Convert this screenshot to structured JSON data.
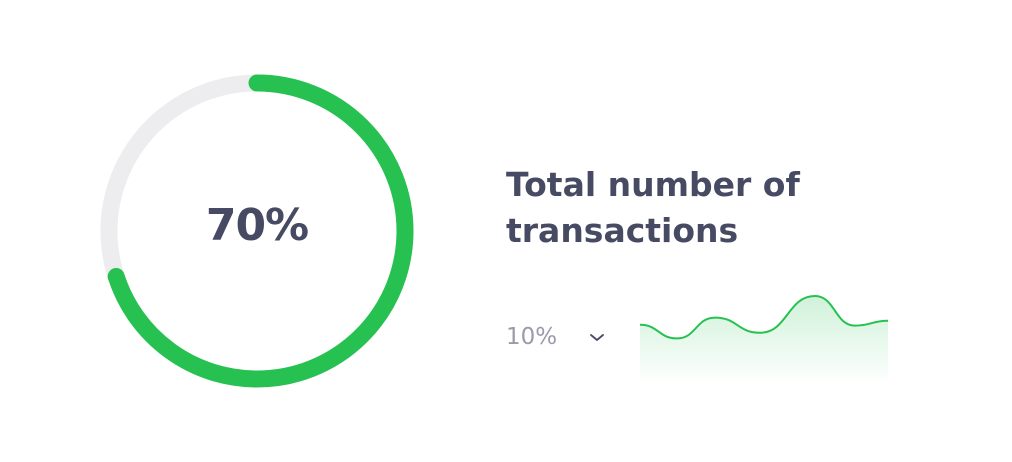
{
  "widget": {
    "progress_percent": 70,
    "progress_label": "70%",
    "title": "Total number of transactions",
    "change_label": "10%",
    "change_icon": "chevron-down-icon",
    "colors": {
      "accent": "#27c152",
      "track": "#ededef",
      "text": "#474a63",
      "muted": "#9a9aac"
    }
  },
  "chart_data": {
    "type": "area",
    "values": [
      34,
      17,
      43,
      24,
      70,
      33,
      39
    ]
  }
}
